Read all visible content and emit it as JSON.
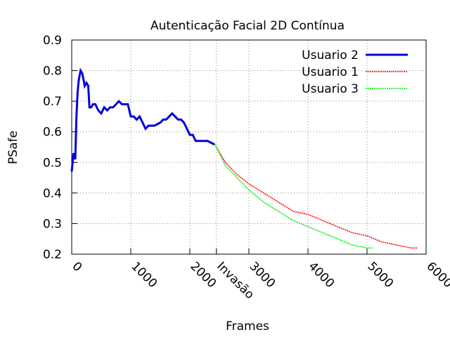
{
  "chart_data": {
    "type": "line",
    "title": "Autenticação Facial 2D Contínua",
    "x_label": "Frames",
    "y_label": "PSafe",
    "xlim": [
      0,
      6000
    ],
    "ylim": [
      0.2,
      0.9
    ],
    "xticks": [
      0,
      1000,
      2000,
      {
        "value": 2450,
        "label": "Invasão"
      },
      3000,
      4000,
      5000,
      6000
    ],
    "yticks": [
      0.2,
      0.3,
      0.4,
      0.5,
      0.6,
      0.7,
      0.8,
      0.9
    ],
    "grid": true,
    "legend": "top-right",
    "series": [
      {
        "name": "Usuario 2",
        "color": "#0000dd",
        "width": 3,
        "x": [
          0,
          30,
          60,
          80,
          100,
          120,
          150,
          180,
          200,
          220,
          250,
          280,
          300,
          330,
          360,
          400,
          450,
          500,
          550,
          600,
          650,
          700,
          750,
          800,
          850,
          900,
          950,
          1000,
          1050,
          1100,
          1150,
          1200,
          1250,
          1300,
          1400,
          1500,
          1550,
          1600,
          1650,
          1700,
          1750,
          1800,
          1850,
          1900,
          1950,
          2000,
          2050,
          2100,
          2150,
          2200,
          2300,
          2400,
          2420
        ],
        "values": [
          0.47,
          0.53,
          0.51,
          0.65,
          0.73,
          0.77,
          0.8,
          0.79,
          0.77,
          0.75,
          0.76,
          0.75,
          0.68,
          0.68,
          0.69,
          0.69,
          0.67,
          0.66,
          0.68,
          0.67,
          0.68,
          0.68,
          0.69,
          0.7,
          0.69,
          0.69,
          0.69,
          0.65,
          0.65,
          0.64,
          0.65,
          0.63,
          0.61,
          0.62,
          0.62,
          0.63,
          0.64,
          0.64,
          0.65,
          0.66,
          0.65,
          0.64,
          0.64,
          0.63,
          0.61,
          0.59,
          0.59,
          0.57,
          0.57,
          0.57,
          0.57,
          0.56,
          0.56
        ]
      },
      {
        "name": "Usuario 1",
        "color": "#ff0000",
        "width": 1.5,
        "x": [
          2420,
          2600,
          2800,
          3000,
          3250,
          3500,
          3750,
          4000,
          4250,
          4500,
          4750,
          5000,
          5250,
          5500,
          5750,
          5850
        ],
        "values": [
          0.56,
          0.5,
          0.46,
          0.43,
          0.4,
          0.37,
          0.34,
          0.33,
          0.31,
          0.29,
          0.27,
          0.26,
          0.24,
          0.23,
          0.22,
          0.22
        ]
      },
      {
        "name": "Usuario 3",
        "color": "#00ee00",
        "width": 1.5,
        "x": [
          2420,
          2600,
          2800,
          3000,
          3250,
          3500,
          3750,
          4000,
          4250,
          4500,
          4750,
          5000,
          5100
        ],
        "values": [
          0.56,
          0.49,
          0.45,
          0.41,
          0.37,
          0.34,
          0.31,
          0.29,
          0.27,
          0.25,
          0.23,
          0.22,
          0.22
        ]
      }
    ]
  }
}
